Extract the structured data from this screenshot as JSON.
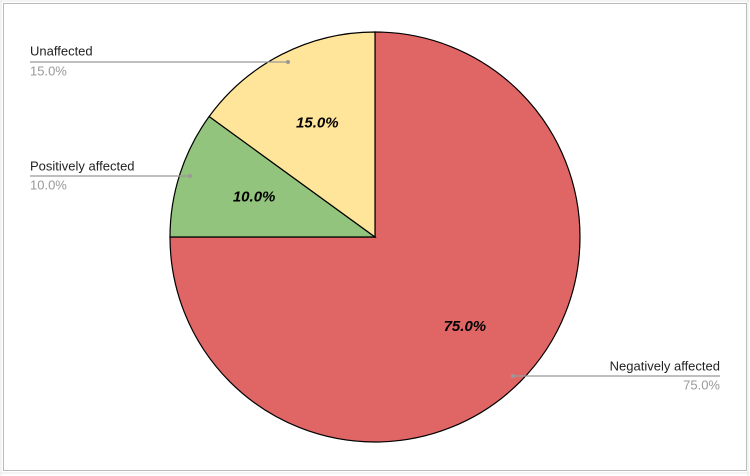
{
  "chart_data": {
    "type": "pie",
    "categories": [
      "Negatively affected",
      "Positively affected",
      "Unaffected"
    ],
    "values": [
      75,
      10,
      15
    ],
    "value_labels": [
      "75.0%",
      "10.0%",
      "15.0%"
    ],
    "colors": [
      "#e06666",
      "#93c47d",
      "#ffe599"
    ]
  }
}
